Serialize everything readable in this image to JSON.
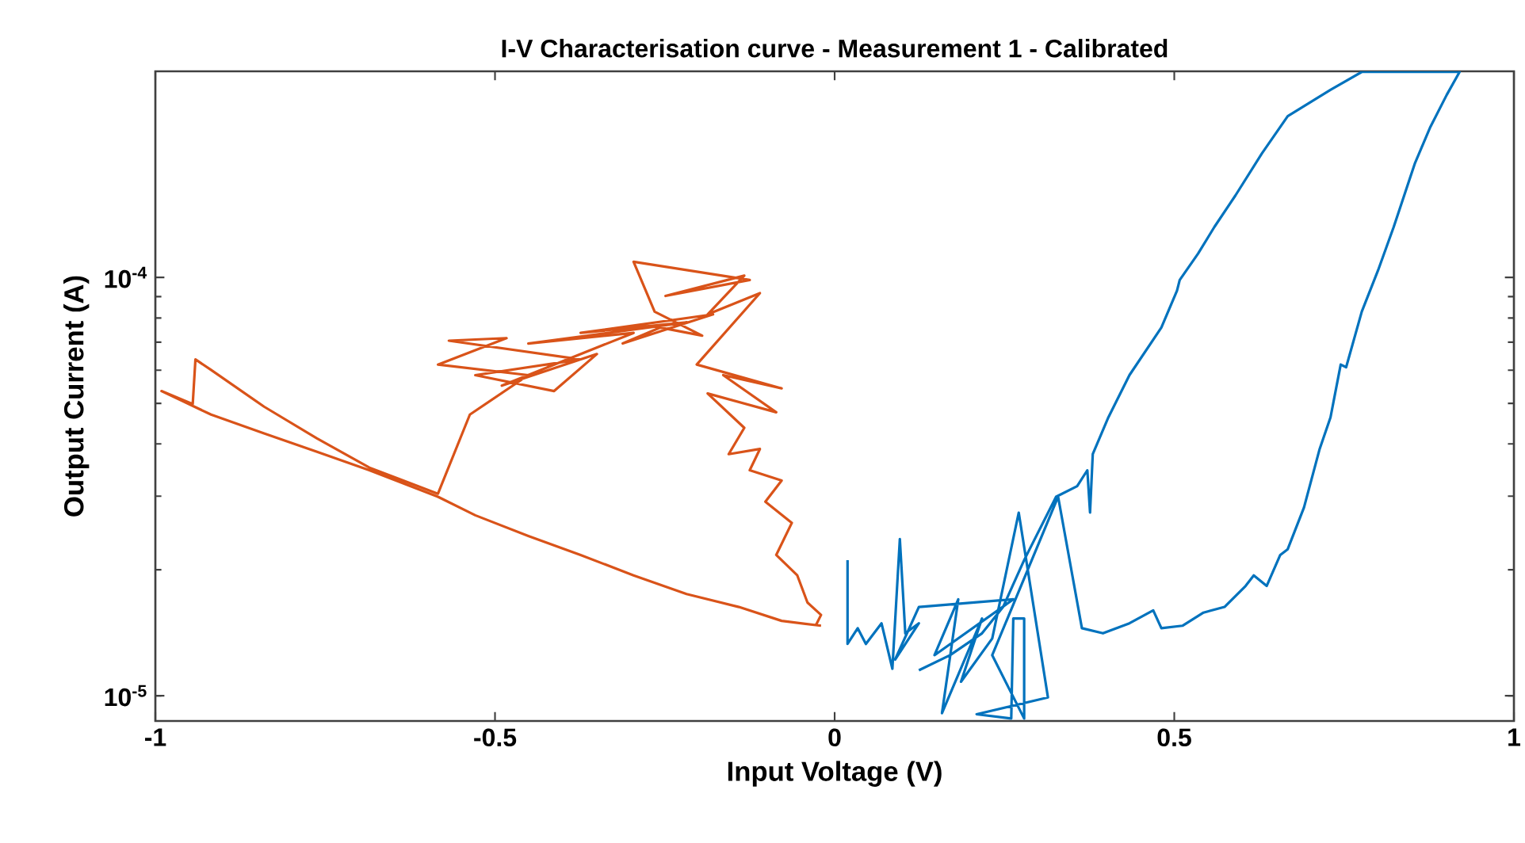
{
  "chart_data": {
    "type": "line",
    "title": "I-V Characterisation curve - Measurement 1 - Calibrated",
    "xlabel": "Input Voltage (V)",
    "ylabel": "Output Current (A)",
    "log": "y",
    "xlim": [
      -1,
      1
    ],
    "ylim": [
      8.7e-06,
      0.000311
    ],
    "xticks": [
      -1,
      -0.5,
      0,
      0.5,
      1
    ],
    "yticks": [
      {
        "value": 1e-05,
        "label": "10$^{-5}$"
      },
      {
        "value": 0.0001,
        "label": "10$^{-4}$"
      }
    ],
    "series": [
      {
        "color": "#d95319",
        "x": [
          -0.02,
          -0.078,
          -0.141,
          -0.218,
          -0.296,
          -0.374,
          -0.451,
          -0.529,
          -0.584,
          -0.685,
          -0.762,
          -0.84,
          -0.918,
          -0.991,
          -0.945,
          -0.941,
          -0.918,
          -0.84,
          -0.762,
          -0.685,
          -0.584,
          -0.537,
          -0.451,
          -0.584,
          -0.483,
          -0.568,
          -0.374,
          -0.529,
          -0.413,
          -0.35,
          -0.49,
          -0.296,
          -0.451,
          -0.218,
          -0.374,
          -0.179,
          -0.312,
          -0.257,
          -0.195,
          -0.265,
          -0.296,
          -0.125,
          -0.249,
          -0.133,
          -0.187,
          -0.11,
          -0.203,
          -0.078,
          -0.164,
          -0.086,
          -0.187,
          -0.133,
          -0.156,
          -0.11,
          -0.125,
          -0.078,
          -0.102,
          -0.063,
          -0.086,
          -0.055,
          -0.04,
          -0.02,
          -0.028
        ],
        "values": [
          1.47e-05,
          1.51e-05,
          1.63e-05,
          1.75e-05,
          1.94e-05,
          2.17e-05,
          2.41e-05,
          2.7e-05,
          2.99e-05,
          3.46e-05,
          3.83e-05,
          4.24e-05,
          4.7e-05,
          5.35e-05,
          4.98e-05,
          6.37e-05,
          6.01e-05,
          4.91e-05,
          4.12e-05,
          3.51e-05,
          3.04e-05,
          4.7e-05,
          5.84e-05,
          6.19e-05,
          7.16e-05,
          7.06e-05,
          6.37e-05,
          5.84e-05,
          5.35e-05,
          6.56e-05,
          5.51e-05,
          7.37e-05,
          6.95e-05,
          7.81e-05,
          7.37e-05,
          8.16e-05,
          6.95e-05,
          7.59e-05,
          7.26e-05,
          8.28e-05,
          0.000109,
          9.86e-05,
          9.03e-05,
          0.000101,
          8.16e-05,
          9.17e-05,
          6.19e-05,
          5.43e-05,
          5.84e-05,
          4.76e-05,
          5.28e-05,
          4.37e-05,
          3.78e-05,
          3.89e-05,
          3.46e-05,
          3.27e-05,
          2.91e-05,
          2.59e-05,
          2.17e-05,
          1.94e-05,
          1.67e-05,
          1.56e-05,
          1.47e-05
        ]
      },
      {
        "color": "#0072bd",
        "x": [
          0.019,
          0.019,
          0.034,
          0.046,
          0.069,
          0.085,
          0.096,
          0.104,
          0.124,
          0.089,
          0.124,
          0.263,
          0.147,
          0.182,
          0.158,
          0.217,
          0.186,
          0.232,
          0.271,
          0.314,
          0.209,
          0.26,
          0.263,
          0.279,
          0.279,
          0.232,
          0.329,
          0.364,
          0.395,
          0.434,
          0.469,
          0.481,
          0.512,
          0.543,
          0.574,
          0.605,
          0.617,
          0.636,
          0.656,
          0.667,
          0.691,
          0.714,
          0.73,
          0.745,
          0.753,
          0.776,
          0.8,
          0.823,
          0.854,
          0.877,
          0.901,
          0.92,
          0.776,
          0.73,
          0.667,
          0.629,
          0.59,
          0.559,
          0.535,
          0.508,
          0.504,
          0.481,
          0.434,
          0.403,
          0.38,
          0.376,
          0.372,
          0.357,
          0.326,
          0.279,
          0.248,
          0.217,
          0.17,
          0.124
        ],
        "values": [
          2.11e-05,
          1.33e-05,
          1.45e-05,
          1.33e-05,
          1.49e-05,
          1.16e-05,
          2.37e-05,
          1.41e-05,
          1.49e-05,
          1.22e-05,
          1.63e-05,
          1.7e-05,
          1.25e-05,
          1.7e-05,
          9.08e-06,
          1.53e-05,
          1.08e-05,
          1.37e-05,
          2.74e-05,
          9.91e-06,
          9.03e-06,
          8.82e-06,
          1.53e-05,
          1.53e-05,
          8.82e-06,
          1.25e-05,
          2.99e-05,
          1.45e-05,
          1.41e-05,
          1.49e-05,
          1.6e-05,
          1.45e-05,
          1.47e-05,
          1.58e-05,
          1.63e-05,
          1.83e-05,
          1.94e-05,
          1.83e-05,
          2.17e-05,
          2.24e-05,
          2.82e-05,
          3.89e-05,
          4.63e-05,
          6.19e-05,
          6.1e-05,
          8.28e-05,
          0.000104,
          0.000132,
          0.000187,
          0.000229,
          0.000273,
          0.00031,
          0.00031,
          0.000281,
          0.000243,
          0.000198,
          0.000157,
          0.000132,
          0.000114,
          9.86e-05,
          9.3e-05,
          7.59e-05,
          5.84e-05,
          4.63e-05,
          3.78e-05,
          2.74e-05,
          3.46e-05,
          3.17e-05,
          2.99e-05,
          2.11e-05,
          1.63e-05,
          1.41e-05,
          1.25e-05,
          1.15e-05
        ]
      }
    ]
  }
}
